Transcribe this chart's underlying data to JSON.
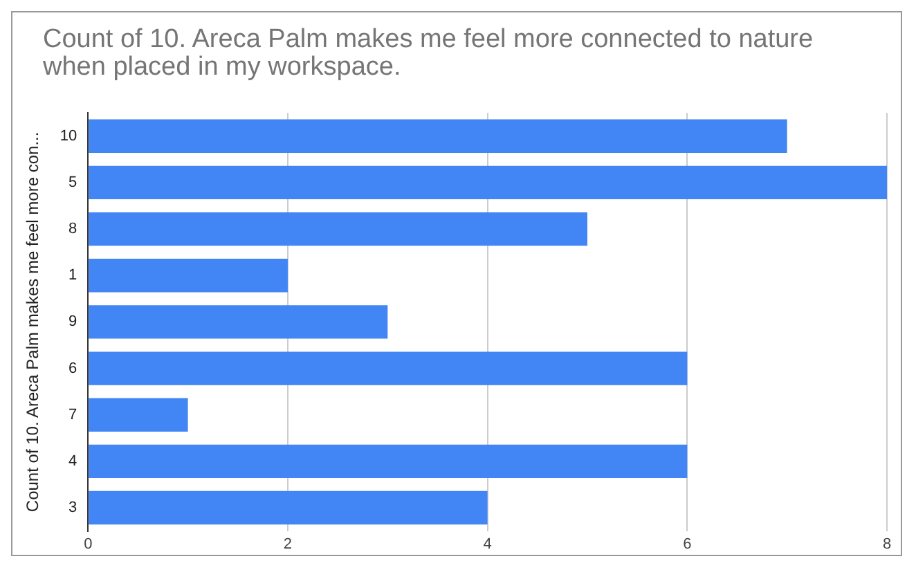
{
  "chart_data": {
    "type": "bar",
    "orientation": "horizontal",
    "title": "Count of 10. Areca Palm makes me feel more connected to nature when placed in my workspace.",
    "ylabel": "Count of 10. Areca Palm makes me feel more con...",
    "categories": [
      "10",
      "5",
      "8",
      "1",
      "9",
      "6",
      "7",
      "4",
      "3"
    ],
    "values": [
      7,
      8,
      5,
      2,
      3,
      6,
      1,
      6,
      4
    ],
    "color": "#4285f4",
    "xlim": [
      0,
      8
    ],
    "xticks": [
      0,
      2,
      4,
      6,
      8
    ],
    "grid": "x",
    "legend": false
  }
}
